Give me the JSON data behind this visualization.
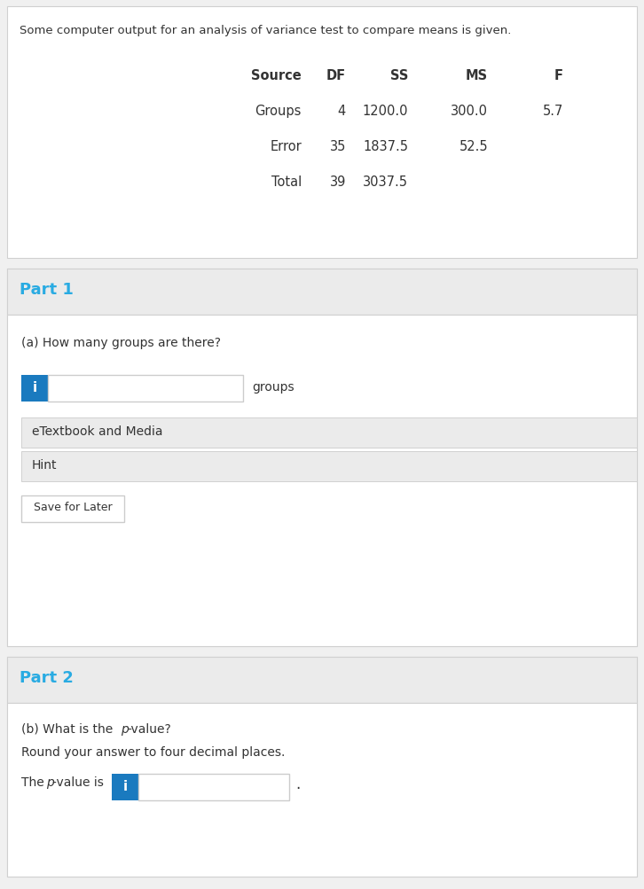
{
  "intro_text": "Some computer output for an analysis of variance test to compare means is given.",
  "table_headers": [
    "Source",
    "DF",
    "SS",
    "MS",
    "F"
  ],
  "table_rows": [
    [
      "Groups",
      "4",
      "1200.0",
      "300.0",
      "5.7"
    ],
    [
      "Error",
      "35",
      "1837.5",
      "52.5",
      ""
    ],
    [
      "Total",
      "39",
      "3037.5",
      "",
      ""
    ]
  ],
  "part1_title": "Part 1",
  "part1_question": "(a) How many groups are there?",
  "part1_input_label": "groups",
  "part1_links": [
    "eTextbook and Media",
    "Hint"
  ],
  "part1_button": "Save for Later",
  "part2_title": "Part 2",
  "part2_q1a": "(b) What is the ",
  "part2_q1b": "p",
  "part2_q1c": "-value?",
  "part2_q2": "Round your answer to four decimal places.",
  "part2_pval_pre1": "The ",
  "part2_pval_pre2": "p",
  "part2_pval_pre3": "-value is",
  "bg_color": "#f0f0f0",
  "white": "#ffffff",
  "blue_header": "#29abe2",
  "border_color": "#cccccc",
  "text_dark": "#333333",
  "info_bg": "#1a7abf",
  "card_border": "#d0d0d0",
  "header_bg": "#ebebeb"
}
